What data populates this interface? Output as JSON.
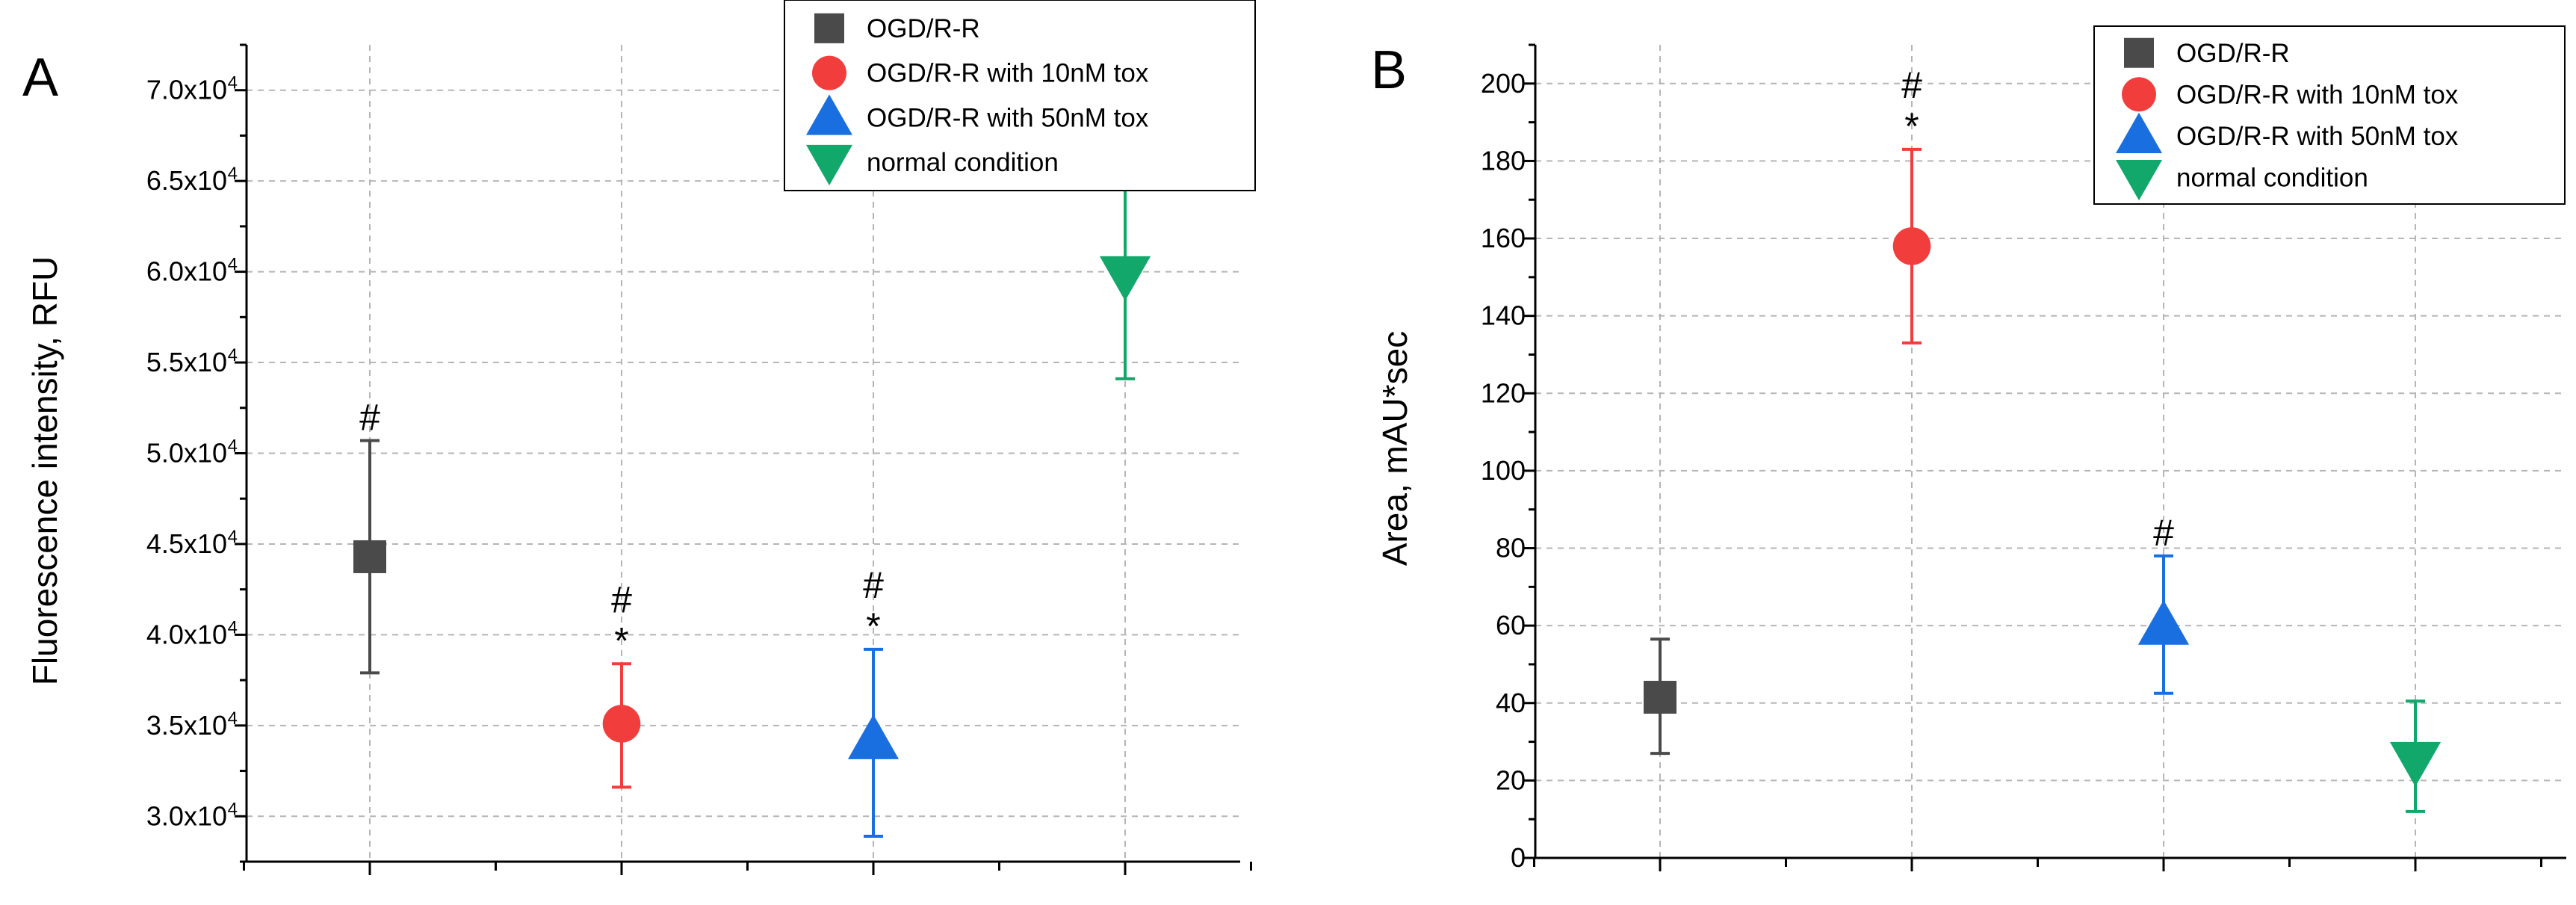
{
  "chart_data": [
    {
      "panel": "A",
      "type": "scatter",
      "ylabel": "Fluorescence intensity, RFU",
      "xlabel": "",
      "ylim": [
        27500,
        72500
      ],
      "yticks": [
        {
          "value": 30000,
          "mant": "3.0x10",
          "exp": "4"
        },
        {
          "value": 35000,
          "mant": "3.5x10",
          "exp": "4"
        },
        {
          "value": 40000,
          "mant": "4.0x10",
          "exp": "4"
        },
        {
          "value": 45000,
          "mant": "4.5x10",
          "exp": "4"
        },
        {
          "value": 50000,
          "mant": "5.0x10",
          "exp": "4"
        },
        {
          "value": 55000,
          "mant": "5.5x10",
          "exp": "4"
        },
        {
          "value": 60000,
          "mant": "6.0x10",
          "exp": "4"
        },
        {
          "value": 65000,
          "mant": "6.5x10",
          "exp": "4"
        },
        {
          "value": 70000,
          "mant": "7.0x10",
          "exp": "4"
        }
      ],
      "grid": true,
      "legend_position": "top-right",
      "series": [
        {
          "name": "OGD/R-R",
          "marker": "square",
          "color": "#4a4a4a",
          "x": 1,
          "y": 44300,
          "err_low": 37900,
          "err_high": 50700,
          "annotations": [
            "#"
          ]
        },
        {
          "name": "OGD/R-R with 10nM tox",
          "marker": "circle",
          "color": "#f23d3d",
          "x": 2,
          "y": 35100,
          "err_low": 31600,
          "err_high": 38400,
          "annotations": [
            "#",
            "*"
          ]
        },
        {
          "name": "OGD/R-R with 50nM tox",
          "marker": "triangle-up",
          "color": "#1a6fe0",
          "x": 3,
          "y": 34200,
          "err_low": 28900,
          "err_high": 39200,
          "annotations": [
            "#",
            "*"
          ]
        },
        {
          "name": "normal condition",
          "marker": "triangle-down",
          "color": "#13a86b",
          "x": 4,
          "y": 59800,
          "err_low": 54100,
          "err_high": 65200,
          "annotations": []
        }
      ]
    },
    {
      "panel": "B",
      "type": "scatter",
      "ylabel": "Area, mAU*sec",
      "xlabel": "",
      "ylim": [
        0,
        210
      ],
      "yticks": [
        {
          "value": 0,
          "mant": "0",
          "exp": ""
        },
        {
          "value": 20,
          "mant": "20",
          "exp": ""
        },
        {
          "value": 40,
          "mant": "40",
          "exp": ""
        },
        {
          "value": 60,
          "mant": "60",
          "exp": ""
        },
        {
          "value": 80,
          "mant": "80",
          "exp": ""
        },
        {
          "value": 100,
          "mant": "100",
          "exp": ""
        },
        {
          "value": 120,
          "mant": "120",
          "exp": ""
        },
        {
          "value": 140,
          "mant": "140",
          "exp": ""
        },
        {
          "value": 160,
          "mant": "160",
          "exp": ""
        },
        {
          "value": 180,
          "mant": "180",
          "exp": ""
        },
        {
          "value": 200,
          "mant": "200",
          "exp": ""
        }
      ],
      "grid": true,
      "legend_position": "top-right",
      "series": [
        {
          "name": "OGD/R-R",
          "marker": "square",
          "color": "#4a4a4a",
          "x": 1,
          "y": 41.5,
          "err_low": 27,
          "err_high": 56.5,
          "annotations": []
        },
        {
          "name": "OGD/R-R with 10nM tox",
          "marker": "circle",
          "color": "#f23d3d",
          "x": 2,
          "y": 158,
          "err_low": 133,
          "err_high": 183,
          "annotations": [
            "#",
            "*"
          ]
        },
        {
          "name": "OGD/R-R with 50nM tox",
          "marker": "triangle-up",
          "color": "#1a6fe0",
          "x": 3,
          "y": 60,
          "err_low": 42.5,
          "err_high": 78,
          "annotations": [
            "#"
          ]
        },
        {
          "name": "normal condition",
          "marker": "triangle-down",
          "color": "#13a86b",
          "x": 4,
          "y": 25,
          "err_low": 12,
          "err_high": 40.5,
          "annotations": []
        }
      ]
    }
  ]
}
